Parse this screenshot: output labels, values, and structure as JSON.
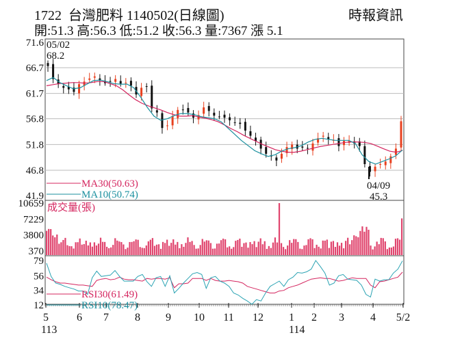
{
  "header": {
    "title": "1722  台灣肥料 1140502(日線圖)",
    "source": "時報資訊",
    "ohlc_line": "開:51.3 高:56.3 低:51.2 收:56.3 量:7367 漲 5.1"
  },
  "colors": {
    "up": "#e8411f",
    "down": "#111111",
    "ma30": "#d4245e",
    "ma10": "#1a8f9e",
    "volume": "#e0456e",
    "rsi30": "#d4245e",
    "rsi10": "#2aa3b3",
    "grid": "#bbbbbb"
  },
  "chart_data": [
    {
      "type": "candlestick",
      "title": "1722 台灣肥料 1140502(日線圖)",
      "ylim": [
        41.9,
        71.6
      ],
      "yticks": [
        "71.6",
        "66.7",
        "61.7",
        "56.8",
        "51.8",
        "46.8",
        "41.9"
      ],
      "annotations": [
        {
          "label": "05/02",
          "value": "68.2",
          "position": "top-left"
        },
        {
          "label": "04/09",
          "value": "45.3",
          "position": "bottom-right"
        }
      ],
      "legend": [
        {
          "name": "MA30(50.63)",
          "color": "#d4245e"
        },
        {
          "name": "MA10(50.74)",
          "color": "#1a8f9e"
        }
      ],
      "close_path": [
        67.0,
        64.5,
        63.5,
        62.8,
        62.5,
        62.0,
        63.5,
        64.0,
        64.6,
        65.0,
        64.2,
        63.7,
        64.0,
        64.5,
        63.6,
        63.8,
        63.2,
        61.5,
        62.8,
        63.0,
        58.8,
        58.0,
        55.0,
        55.5,
        57.3,
        58.5,
        58.5,
        58.0,
        57.0,
        57.5,
        59.0,
        58.3,
        57.4,
        57.2,
        57.0,
        56.5,
        56.0,
        55.8,
        54.5,
        53.5,
        52.5,
        51.0,
        50.0,
        49.5,
        48.7,
        50.0,
        51.3,
        51.8,
        51.0,
        51.2,
        51.0,
        52.0,
        53.0,
        53.5,
        52.8,
        52.7,
        51.5,
        52.5,
        52.5,
        52.0,
        51.5,
        48.0,
        46.5,
        47.5,
        48.0,
        48.5,
        49.5,
        51.0,
        56.3
      ],
      "ma30_path": [
        63.2,
        63.4,
        63.6,
        63.7,
        63.8,
        63.8,
        63.7,
        63.8,
        64.0,
        64.0,
        63.6,
        63.2,
        62.4,
        61.4,
        60.5,
        59.8,
        59.3,
        58.9,
        58.5,
        58.0,
        57.6,
        57.3,
        57.3,
        57.4,
        57.1,
        56.9,
        56.6,
        56.2,
        55.6,
        54.9,
        54.3,
        53.6,
        53.0,
        52.4,
        51.8,
        51.3,
        50.8,
        50.5,
        50.3,
        50.3,
        50.5,
        50.8,
        51.1,
        51.4,
        51.6,
        51.8,
        52.0,
        52.2,
        52.3,
        52.3,
        52.2,
        52.0,
        51.5,
        51.0,
        50.5,
        50.3,
        50.63
      ],
      "ma10_path": [
        64.2,
        64.8,
        63.8,
        63.2,
        62.6,
        62.8,
        63.5,
        64.2,
        64.3,
        64.0,
        63.6,
        63.5,
        63.5,
        62.8,
        61.0,
        59.0,
        57.3,
        56.5,
        56.8,
        57.4,
        57.8,
        57.8,
        57.6,
        57.2,
        57.0,
        56.8,
        56.2,
        55.0,
        53.8,
        52.6,
        51.6,
        50.6,
        50.0,
        49.5,
        49.8,
        50.5,
        51.0,
        51.2,
        51.6,
        52.3,
        52.8,
        53.0,
        52.8,
        52.6,
        52.6,
        52.6,
        52.0,
        49.8,
        48.5,
        48.0,
        48.5,
        49.0,
        49.6,
        50.74
      ]
    },
    {
      "type": "bar",
      "title": "成交量(張)",
      "yticks": [
        "10659",
        "7229",
        "3800",
        "370"
      ],
      "ylim": [
        370,
        10659
      ],
      "notable": [
        {
          "date": "12月底",
          "value": 10659
        },
        {
          "date": "05/02",
          "value": 7367
        }
      ]
    },
    {
      "type": "line",
      "title": "RSI",
      "yticks": [
        "79",
        "56",
        "34",
        "12"
      ],
      "ylim": [
        12,
        79
      ],
      "series": [
        {
          "name": "RSI30(61.49)",
          "color": "#d4245e"
        },
        {
          "name": "RSI10(78.47)",
          "color": "#2aa3b3"
        }
      ],
      "rsi30_path": [
        54,
        50,
        47,
        45,
        45,
        44,
        43,
        42,
        42,
        41,
        40,
        49,
        51,
        52,
        50,
        51,
        54,
        51,
        50,
        50,
        49,
        48,
        52,
        51,
        52,
        52,
        51,
        53,
        38,
        44,
        44,
        45,
        52,
        52,
        52,
        49,
        52,
        49,
        48,
        48,
        49,
        48,
        47,
        45,
        40,
        38,
        36,
        34,
        32,
        30,
        30,
        33,
        34,
        38,
        40,
        42,
        45,
        48,
        51,
        52,
        53,
        52,
        52,
        50,
        48,
        49,
        51,
        53,
        52,
        52,
        52,
        42,
        38,
        47,
        48,
        50,
        52,
        54,
        61.49
      ],
      "rsi10_path": [
        75,
        55,
        45,
        43,
        40,
        38,
        36,
        33,
        33,
        28,
        53,
        63,
        55,
        56,
        57,
        64,
        55,
        48,
        48,
        48,
        55,
        58,
        47,
        40,
        53,
        55,
        40,
        56,
        30,
        37,
        45,
        52,
        59,
        61,
        58,
        37,
        53,
        55,
        48,
        45,
        40,
        30,
        27,
        22,
        18,
        13,
        20,
        18,
        30,
        40,
        44,
        48,
        40,
        50,
        54,
        61,
        60,
        62,
        66,
        79,
        70,
        60,
        42,
        45,
        56,
        58,
        51,
        50,
        49,
        42,
        28,
        24,
        51,
        48,
        50,
        50,
        60,
        66,
        78.47
      ],
      "xticks": [
        "5",
        "6",
        "7",
        "8",
        "9",
        "10",
        "11",
        "12",
        "1",
        "2",
        "3",
        "4",
        "5/2"
      ],
      "xsub": [
        {
          "at": "5",
          "label": "113"
        },
        {
          "at": "1",
          "label": "114"
        }
      ]
    }
  ]
}
